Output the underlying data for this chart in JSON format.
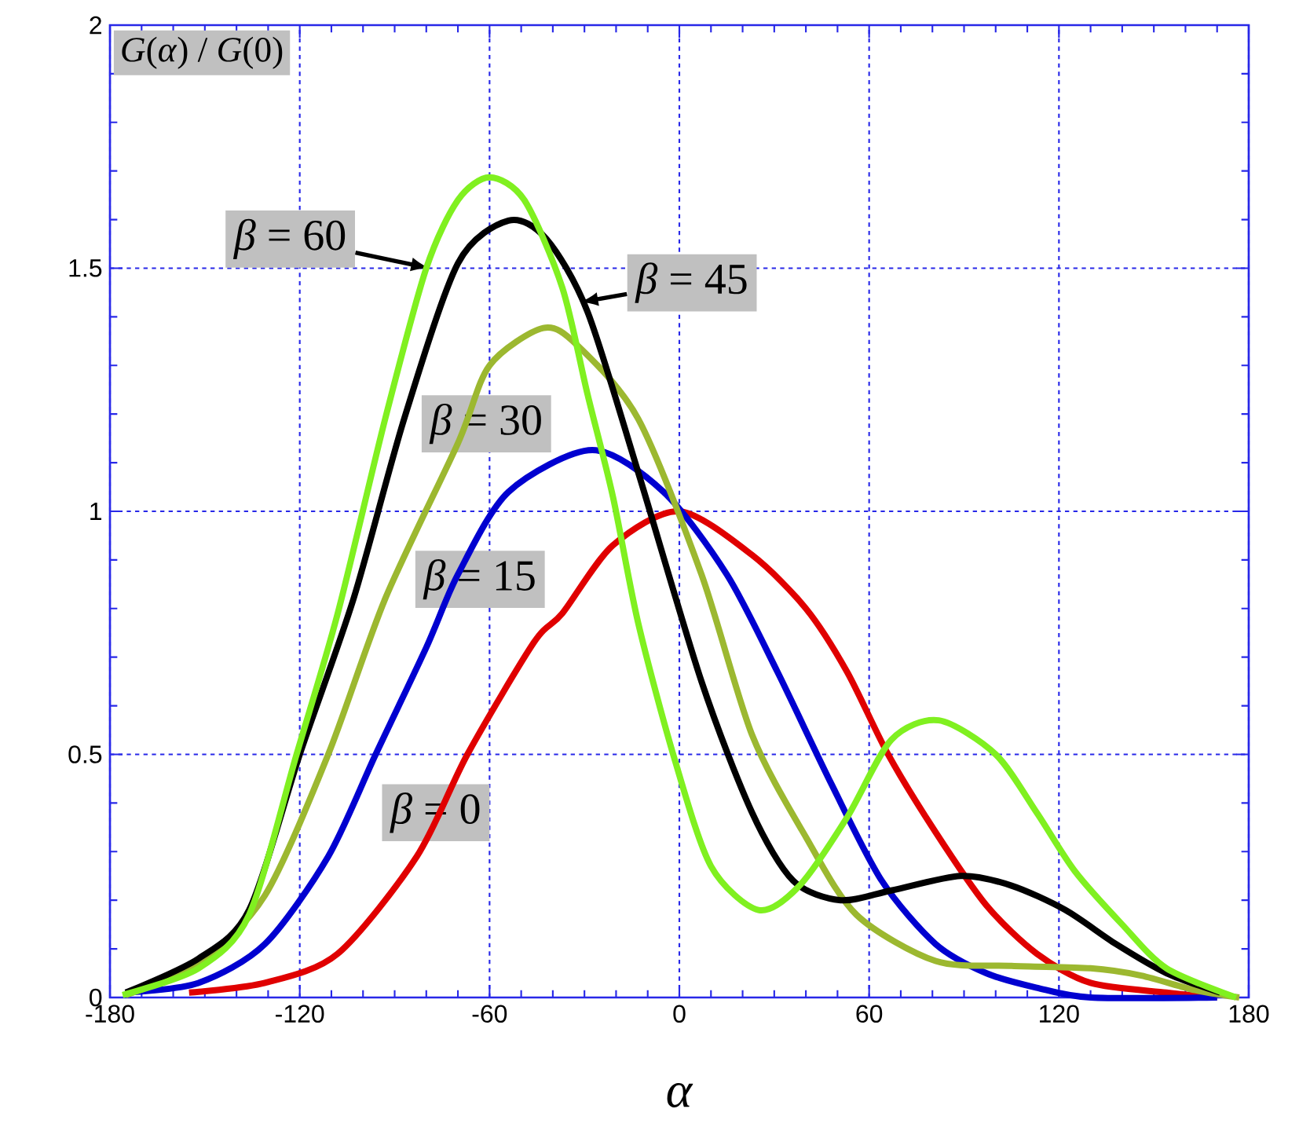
{
  "chart_data": {
    "type": "line",
    "xlabel": "*α*",
    "ylabel": "*G*(*α*) / *G*(0)",
    "xlim": [
      -180,
      180
    ],
    "ylim": [
      0,
      2
    ],
    "xticks": [
      -180,
      -120,
      -60,
      0,
      60,
      120,
      180
    ],
    "yticks": [
      0,
      0.5,
      1,
      1.5,
      2
    ],
    "grid": true,
    "line_style": "solid",
    "series": [
      {
        "name": "*β* = 0",
        "color": "#e00000",
        "x": [
          -155,
          -131,
          -108,
          -83,
          -67,
          -46,
          -37,
          -21,
          0,
          23,
          40,
          53,
          66,
          81,
          97,
          113,
          130,
          154,
          170
        ],
        "values": [
          0.01,
          0.03,
          0.09,
          0.29,
          0.5,
          0.73,
          0.79,
          0.93,
          1.0,
          0.91,
          0.8,
          0.67,
          0.5,
          0.34,
          0.19,
          0.09,
          0.03,
          0.01,
          0
        ]
      },
      {
        "name": "*β* = 15",
        "color": "#0000d0",
        "x": [
          -175,
          -152,
          -131,
          -111,
          -96,
          -80,
          -70,
          -54,
          -27.5,
          -5,
          15,
          31,
          48,
          64,
          81,
          97,
          113,
          130,
          170
        ],
        "values": [
          0.01,
          0.03,
          0.11,
          0.29,
          0.5,
          0.72,
          0.87,
          1.04,
          1.126,
          1.04,
          0.87,
          0.67,
          0.44,
          0.24,
          0.11,
          0.05,
          0.02,
          0,
          0
        ]
      },
      {
        "name": "*β* = 30",
        "color": "#9cb830",
        "x": [
          -175,
          -152,
          -131,
          -111,
          -93,
          -70,
          -60,
          -43,
          -32,
          -13,
          7,
          23,
          40,
          56,
          81,
          105,
          130,
          146,
          163,
          177
        ],
        "values": [
          0.005,
          0.07,
          0.21,
          0.5,
          0.82,
          1.14,
          1.3,
          1.377,
          1.34,
          1.19,
          0.87,
          0.54,
          0.33,
          0.17,
          0.075,
          0.065,
          0.06,
          0.045,
          0.015,
          0
        ]
      },
      {
        "name": "*β* = 45",
        "color": "#000000",
        "x": [
          -175,
          -152,
          -136,
          -120,
          -103,
          -87,
          -70,
          -54,
          -42,
          -29,
          -13,
          7,
          23,
          36,
          51,
          67,
          89,
          105,
          122,
          138,
          154,
          171
        ],
        "values": [
          0.01,
          0.08,
          0.18,
          0.5,
          0.82,
          1.19,
          1.51,
          1.598,
          1.56,
          1.41,
          1.08,
          0.65,
          0.38,
          0.24,
          0.2,
          0.22,
          0.25,
          0.23,
          0.18,
          0.11,
          0.05,
          0.01
        ]
      },
      {
        "name": "*β* = 60",
        "color": "#80f020",
        "x": [
          -176,
          -152,
          -136,
          -121,
          -108,
          -93,
          -80,
          -70,
          -60,
          -49,
          -37,
          -29,
          -21,
          -13,
          -1.5,
          10,
          25,
          38,
          53,
          67,
          82,
          100,
          113,
          125,
          140,
          154,
          176
        ],
        "values": [
          0.005,
          0.06,
          0.17,
          0.5,
          0.79,
          1.19,
          1.5,
          1.64,
          1.687,
          1.64,
          1.46,
          1.24,
          1.03,
          0.77,
          0.49,
          0.27,
          0.18,
          0.23,
          0.37,
          0.53,
          0.57,
          0.5,
          0.38,
          0.26,
          0.15,
          0.06,
          0
        ]
      }
    ]
  }
}
